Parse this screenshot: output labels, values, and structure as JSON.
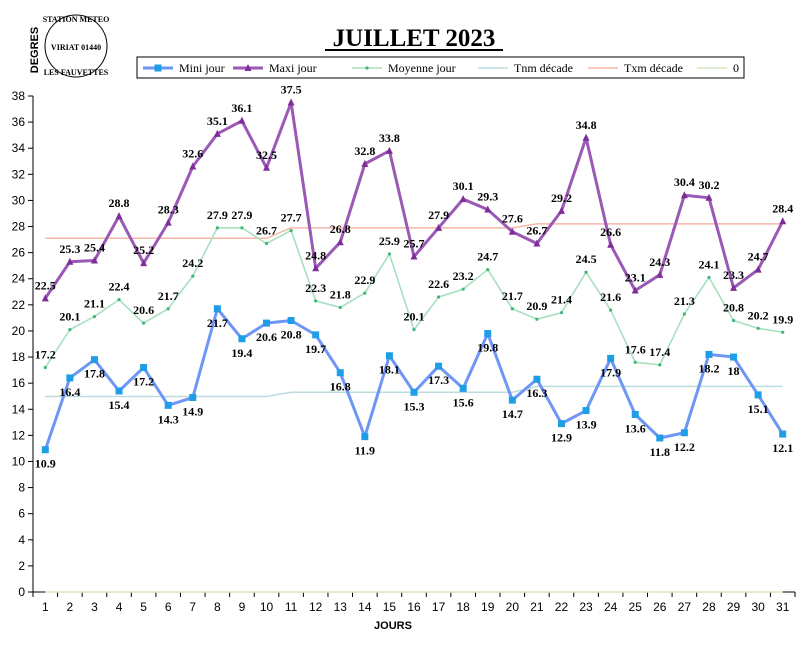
{
  "logo": {
    "top": "STATION METEO",
    "middle": "VIRIAT 01440",
    "bottom": "LES FAUVETTES"
  },
  "chart_data": {
    "type": "line",
    "title": "JUILLET 2023",
    "xlabel": "JOURS",
    "ylabel": "DEGRES",
    "ylim": [
      0,
      38
    ],
    "ytick_step": 2,
    "grid": false,
    "legend_position": "top",
    "categories": [
      "1",
      "2",
      "3",
      "4",
      "5",
      "6",
      "7",
      "8",
      "9",
      "10",
      "11",
      "12",
      "13",
      "14",
      "15",
      "16",
      "17",
      "18",
      "19",
      "20",
      "21",
      "22",
      "23",
      "24",
      "25",
      "26",
      "27",
      "28",
      "29",
      "30",
      "31"
    ],
    "series": [
      {
        "name": "Mini jour",
        "color": "#6E96F5",
        "marker": "#1E9EE6",
        "values": [
          10.9,
          16.4,
          17.8,
          15.4,
          17.2,
          14.3,
          14.9,
          21.7,
          19.4,
          20.6,
          20.8,
          19.7,
          16.8,
          11.9,
          18.1,
          15.3,
          17.3,
          15.6,
          19.8,
          14.7,
          16.3,
          12.9,
          13.9,
          17.9,
          13.6,
          11.8,
          12.2,
          18.2,
          18,
          15.1,
          12.1
        ]
      },
      {
        "name": "Maxi jour",
        "color": "#9B59B6",
        "marker": "#7D2E99",
        "values": [
          22.5,
          25.3,
          25.4,
          28.8,
          25.2,
          28.3,
          32.6,
          35.1,
          36.1,
          32.5,
          37.5,
          24.8,
          26.8,
          32.8,
          33.8,
          25.7,
          27.9,
          30.1,
          29.3,
          27.6,
          26.7,
          29.2,
          34.8,
          26.6,
          23.1,
          24.3,
          30.4,
          30.2,
          23.3,
          24.7,
          28.4
        ]
      },
      {
        "name": "Moyenne jour",
        "color": "#A8E0BE",
        "marker": "#3CB878",
        "values": [
          17.2,
          20.1,
          21.1,
          22.4,
          20.6,
          21.7,
          24.2,
          27.9,
          27.9,
          26.7,
          27.7,
          22.3,
          21.8,
          22.9,
          25.9,
          20.1,
          22.6,
          23.2,
          24.7,
          21.7,
          20.9,
          21.4,
          24.5,
          21.6,
          17.6,
          17.4,
          21.3,
          24.1,
          20.8,
          20.2,
          19.9
        ]
      },
      {
        "name": "Tnm décade",
        "color": "#BBDDE0",
        "values": [
          14.98,
          14.98,
          14.98,
          14.98,
          14.98,
          14.98,
          14.98,
          14.98,
          14.98,
          14.98,
          15.3,
          15.3,
          15.3,
          15.3,
          15.3,
          15.3,
          15.3,
          15.3,
          15.3,
          15.3,
          15.75,
          15.75,
          15.75,
          15.75,
          15.75,
          15.75,
          15.75,
          15.75,
          15.75,
          15.75,
          15.75
        ]
      },
      {
        "name": "Txm décade",
        "color": "#F4B8A6",
        "values": [
          27.1,
          27.1,
          27.1,
          27.1,
          27.1,
          27.1,
          27.1,
          27.1,
          27.1,
          27.1,
          27.9,
          27.9,
          27.9,
          27.9,
          27.9,
          27.9,
          27.9,
          27.9,
          27.9,
          27.9,
          28.2,
          28.2,
          28.2,
          28.2,
          28.2,
          28.2,
          28.2,
          28.2,
          28.2,
          28.2,
          28.2
        ]
      },
      {
        "name": "0",
        "color": "#D7E7C4",
        "values": [
          0,
          0,
          0,
          0,
          0,
          0,
          0,
          0,
          0,
          0,
          0,
          0,
          0,
          0,
          0,
          0,
          0,
          0,
          0,
          0,
          0,
          0,
          0,
          0,
          0,
          0,
          0,
          0,
          0,
          0,
          0
        ]
      }
    ]
  }
}
